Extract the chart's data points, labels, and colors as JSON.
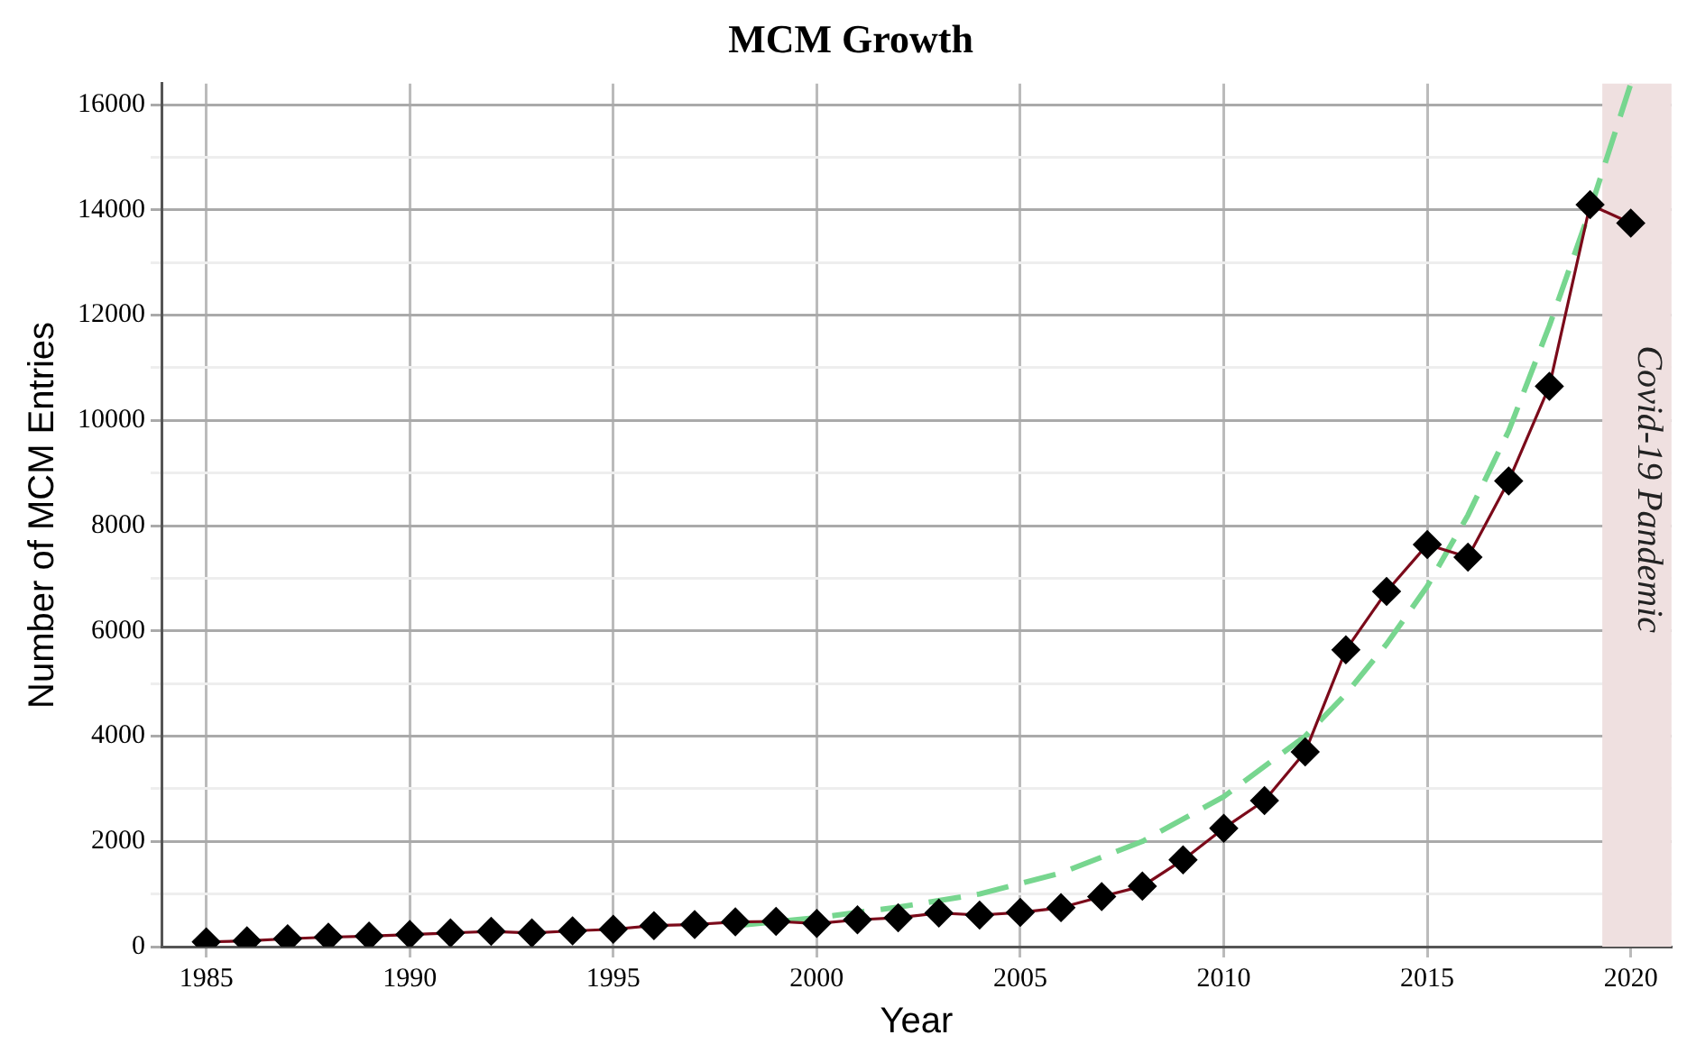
{
  "chart_data": {
    "type": "line",
    "title": "MCM Growth",
    "xlabel": "Year",
    "ylabel": "Number of MCM Entries",
    "xlim": [
      1983.9,
      2021
    ],
    "xticks": [
      1985,
      1990,
      1995,
      2000,
      2005,
      2010,
      2015,
      2020
    ],
    "ylim": [
      0,
      16400
    ],
    "yticks": [
      0,
      {
        "value": 1000,
        "label": null
      },
      2000,
      {
        "value": 3000,
        "label": null
      },
      4000,
      {
        "value": 5000,
        "label": null
      },
      6000,
      {
        "value": 7000,
        "label": null
      },
      8000,
      {
        "value": 9000,
        "label": null
      },
      10000,
      {
        "value": 11000,
        "label": null
      },
      12000,
      {
        "value": 13000,
        "label": null
      },
      14000,
      {
        "value": 15000,
        "label": null
      },
      16000
    ],
    "grid": true,
    "legend": false,
    "series": [
      {
        "color": "#7b0a1a",
        "marker": "diamond",
        "line_style": "solid",
        "x": [
          1985,
          1986,
          1987,
          1988,
          1989,
          1990,
          1991,
          1992,
          1993,
          1994,
          1995,
          1996,
          1997,
          1998,
          1999,
          2000,
          2001,
          2002,
          2003,
          2004,
          2005,
          2006,
          2007,
          2008,
          2009,
          2010,
          2011,
          2012,
          2013,
          2014,
          2015,
          2016,
          2017,
          2018,
          2019,
          2020
        ],
        "values": [
          90,
          110,
          150,
          180,
          200,
          230,
          260,
          290,
          260,
          300,
          330,
          400,
          420,
          470,
          480,
          440,
          510,
          550,
          640,
          600,
          650,
          740,
          950,
          1150,
          1650,
          2250,
          2775,
          3700,
          5640,
          6750,
          7640,
          7400,
          8850,
          10650,
          14100,
          13750
        ]
      },
      {
        "color": "#77d68f",
        "marker": "none",
        "line_style": "dashed",
        "x": [
          1998,
          2000,
          2002,
          2004,
          2006,
          2008,
          2010,
          2012,
          2013,
          2014,
          2015,
          2016,
          2017,
          2018,
          2019,
          2020
        ],
        "values": [
          400,
          550,
          750,
          1000,
          1400,
          2000,
          2850,
          4000,
          4800,
          5750,
          6850,
          8200,
          9800,
          11800,
          14000,
          16400
        ]
      }
    ],
    "bands": [
      {
        "axis": "x",
        "from": 2019.3,
        "to": 2021,
        "label": "Covid-19 Pandemic",
        "color": "#efe0e0"
      }
    ]
  }
}
